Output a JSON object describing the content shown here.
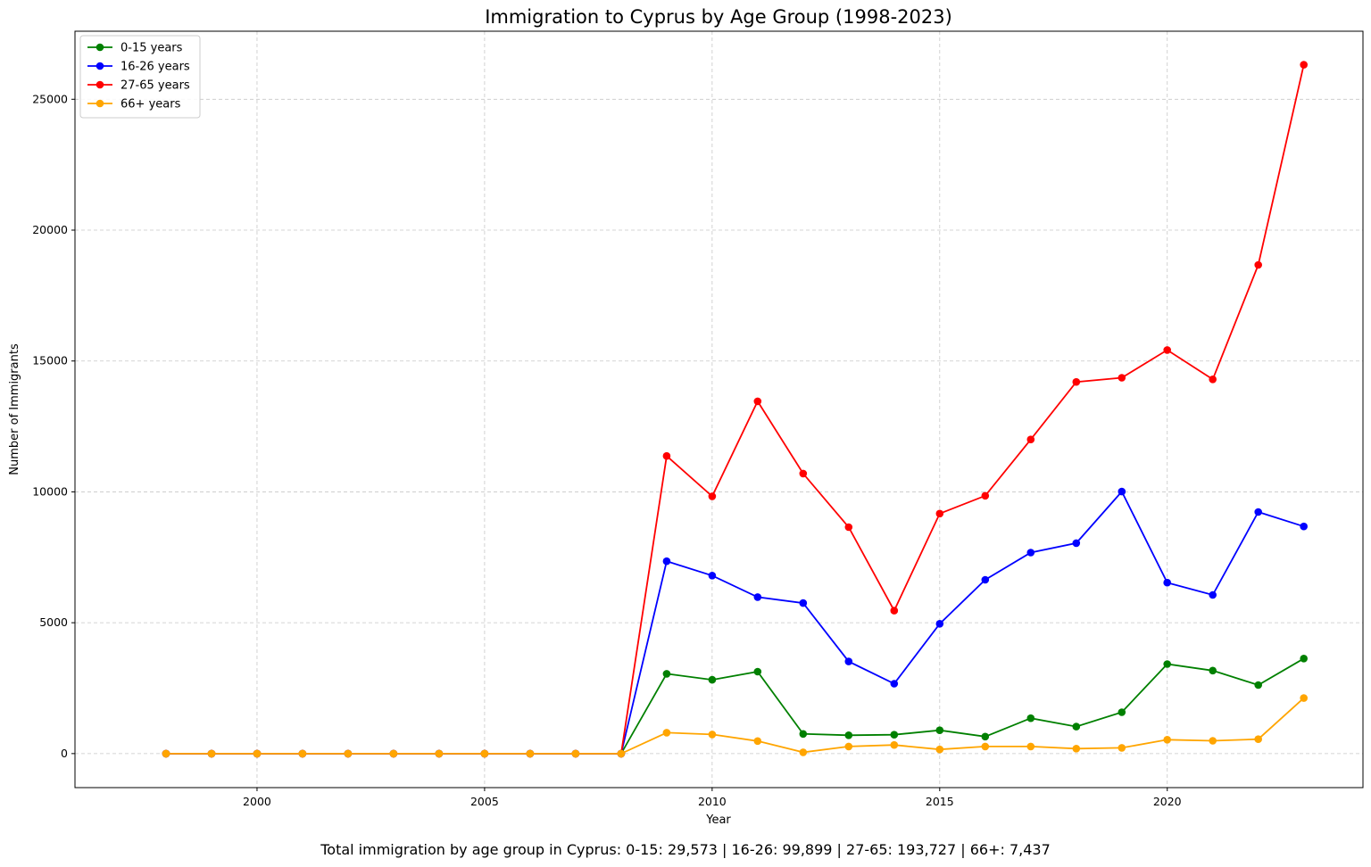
{
  "chart_data": {
    "type": "line",
    "title": "Immigration to Cyprus by Age Group (1998-2023)",
    "xlabel": "Year",
    "ylabel": "Number of Immigrants",
    "xlim": [
      1996,
      2024.3
    ],
    "ylim": [
      -1300,
      27600
    ],
    "xticks": [
      2000,
      2005,
      2010,
      2015,
      2020
    ],
    "yticks": [
      0,
      5000,
      10000,
      15000,
      20000,
      25000
    ],
    "grid": true,
    "legend_position": "top-left",
    "x": [
      1998,
      1999,
      2000,
      2001,
      2002,
      2003,
      2004,
      2005,
      2006,
      2007,
      2008,
      2009,
      2010,
      2011,
      2012,
      2013,
      2014,
      2015,
      2016,
      2017,
      2018,
      2019,
      2020,
      2021,
      2022,
      2023
    ],
    "series": [
      {
        "name": "0-15 years",
        "color": "#008000",
        "values": [
          0,
          0,
          0,
          0,
          0,
          0,
          0,
          0,
          0,
          0,
          0,
          3050,
          2820,
          3130,
          750,
          700,
          720,
          890,
          650,
          1350,
          1030,
          1580,
          3420,
          3170,
          2620,
          3630
        ]
      },
      {
        "name": "16-26 years",
        "color": "#0000ff",
        "values": [
          0,
          0,
          0,
          0,
          0,
          0,
          0,
          0,
          0,
          0,
          0,
          7350,
          6800,
          5980,
          5750,
          3520,
          2670,
          4960,
          6640,
          7680,
          8040,
          10010,
          6530,
          6060,
          9230,
          8680
        ]
      },
      {
        "name": "27-65 years",
        "color": "#ff0000",
        "values": [
          0,
          0,
          0,
          0,
          0,
          0,
          0,
          0,
          0,
          0,
          0,
          11370,
          9830,
          13460,
          10700,
          8650,
          5460,
          9170,
          9850,
          12000,
          14200,
          14360,
          15420,
          14300,
          18670,
          26320
        ]
      },
      {
        "name": "66+ years",
        "color": "#ffa500",
        "values": [
          0,
          0,
          0,
          0,
          0,
          0,
          0,
          0,
          0,
          0,
          0,
          800,
          730,
          480,
          50,
          270,
          330,
          160,
          270,
          270,
          190,
          220,
          530,
          490,
          550,
          2120
        ]
      }
    ],
    "footnote": "Total immigration by age group in Cyprus: 0-15: 29,573 | 16-26: 99,899 | 27-65: 193,727 | 66+: 7,437"
  }
}
